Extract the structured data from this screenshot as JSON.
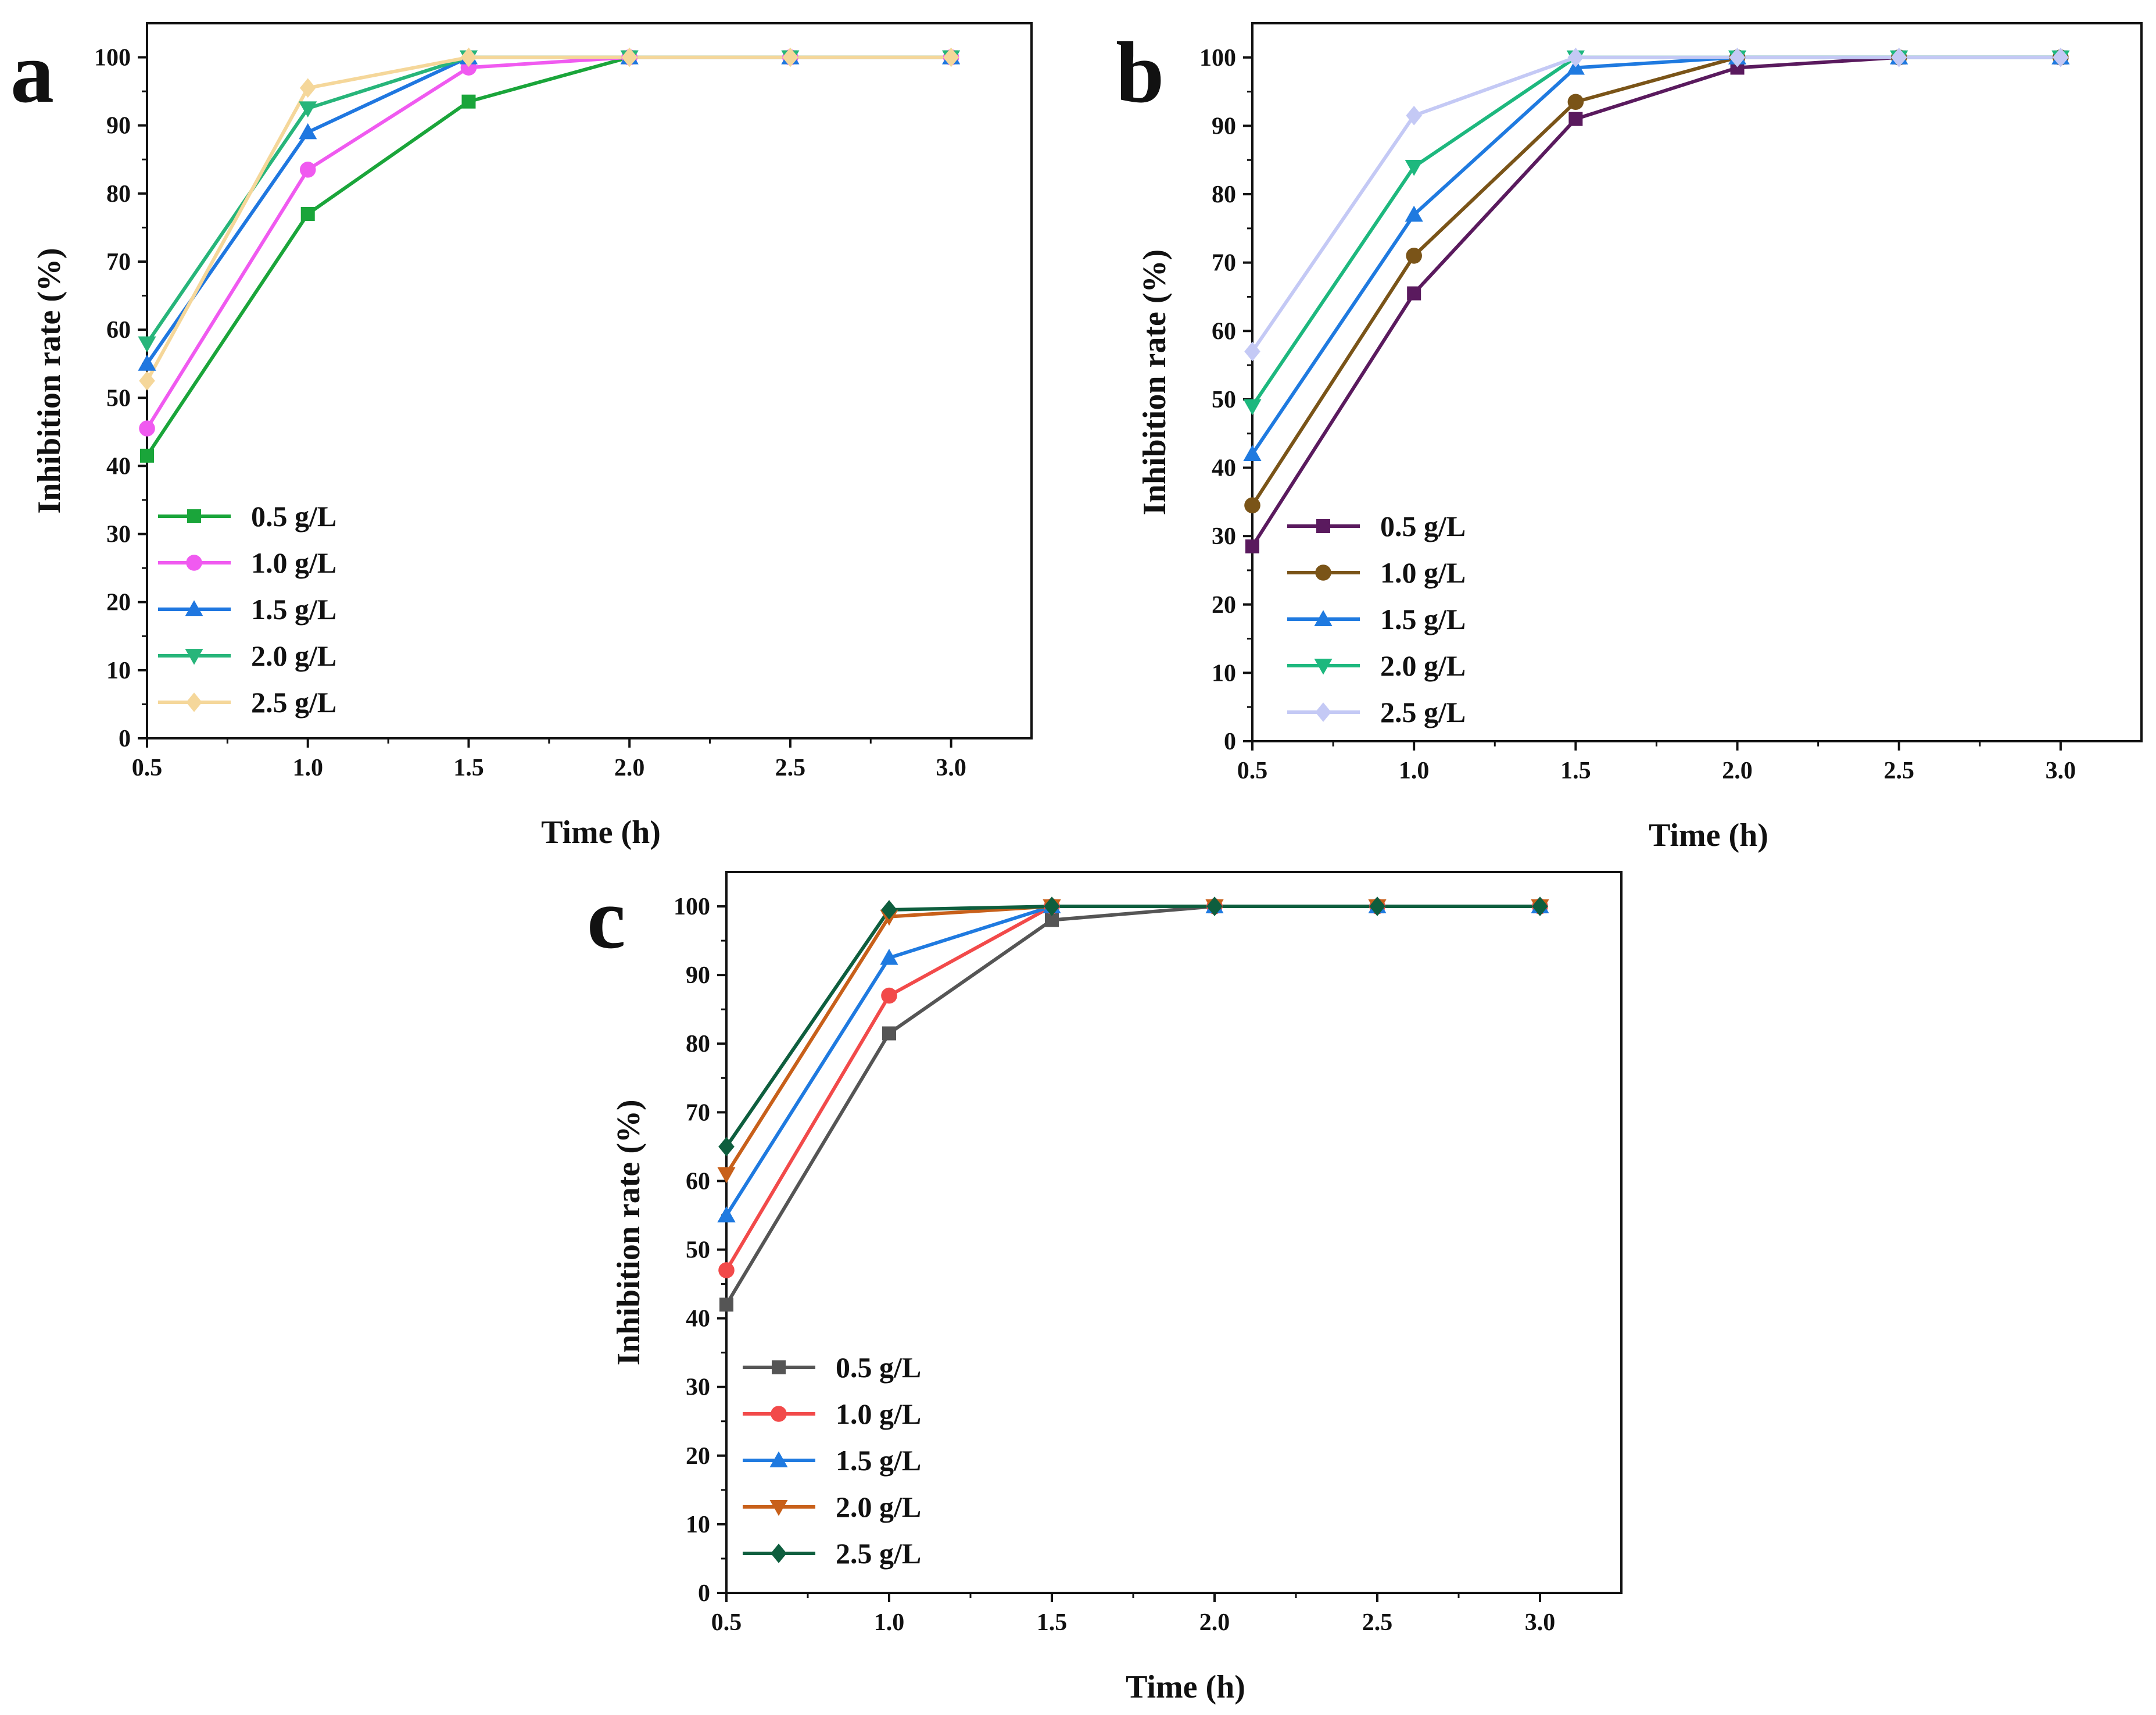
{
  "chart_data": [
    {
      "panel": "a",
      "type": "line",
      "xlabel": "Time (h)",
      "ylabel": "Inhibition rate (%)",
      "xlim": [
        0.5,
        3.25
      ],
      "ylim": [
        0,
        105
      ],
      "x_ticks": [
        "0.5",
        "1.0",
        "1.5",
        "2.0",
        "2.5",
        "3.0"
      ],
      "y_ticks": [
        "0",
        "10",
        "20",
        "30",
        "40",
        "50",
        "60",
        "70",
        "80",
        "90",
        "100"
      ],
      "x": [
        0.5,
        1.0,
        1.5,
        2.0,
        2.5,
        3.0
      ],
      "legend_position": "bottom-left",
      "series": [
        {
          "name": "0.5 g/L",
          "color": "#1aa53a",
          "marker": "square",
          "values": [
            41.5,
            77,
            93.5,
            100,
            100,
            100
          ]
        },
        {
          "name": "1.0 g/L",
          "color": "#f05af0",
          "marker": "circle",
          "values": [
            45.5,
            83.5,
            98.5,
            100,
            100,
            100
          ]
        },
        {
          "name": "1.5 g/L",
          "color": "#1f77e0",
          "marker": "triangle-up",
          "values": [
            55,
            89,
            100,
            100,
            100,
            100
          ]
        },
        {
          "name": "2.0 g/L",
          "color": "#27b57a",
          "marker": "triangle-down",
          "values": [
            58,
            92.5,
            100,
            100,
            100,
            100
          ]
        },
        {
          "name": "2.5 g/L",
          "color": "#f5d79a",
          "marker": "diamond",
          "values": [
            52.5,
            95.5,
            100,
            100,
            100,
            100
          ]
        }
      ]
    },
    {
      "panel": "b",
      "type": "line",
      "xlabel": "Time (h)",
      "ylabel": "Inhibition rate (%)",
      "xlim": [
        0.5,
        3.25
      ],
      "ylim": [
        0,
        105
      ],
      "x_ticks": [
        "0.5",
        "1.0",
        "1.5",
        "2.0",
        "2.5",
        "3.0"
      ],
      "y_ticks": [
        "0",
        "10",
        "20",
        "30",
        "40",
        "50",
        "60",
        "70",
        "80",
        "90",
        "100"
      ],
      "x": [
        0.5,
        1.0,
        1.5,
        2.0,
        2.5,
        3.0
      ],
      "legend_position": "bottom-left",
      "series": [
        {
          "name": "0.5 g/L",
          "color": "#5a1a5e",
          "marker": "square",
          "values": [
            28.5,
            65.5,
            91,
            98.5,
            100,
            100
          ]
        },
        {
          "name": "1.0 g/L",
          "color": "#7a5418",
          "marker": "circle",
          "values": [
            34.5,
            71,
            93.5,
            100,
            100,
            100
          ]
        },
        {
          "name": "1.5 g/L",
          "color": "#1f7ae0",
          "marker": "triangle-up",
          "values": [
            42,
            77,
            98.5,
            100,
            100,
            100
          ]
        },
        {
          "name": "2.0 g/L",
          "color": "#1db87e",
          "marker": "triangle-down",
          "values": [
            49,
            84,
            100,
            100,
            100,
            100
          ]
        },
        {
          "name": "2.5 g/L",
          "color": "#c4c9f5",
          "marker": "diamond",
          "values": [
            57,
            91.5,
            100,
            100,
            100,
            100
          ]
        }
      ]
    },
    {
      "panel": "c",
      "type": "line",
      "xlabel": "Time (h)",
      "ylabel": "Inhibition rate (%)",
      "xlim": [
        0.5,
        3.25
      ],
      "ylim": [
        0,
        105
      ],
      "x_ticks": [
        "0.5",
        "1.0",
        "1.5",
        "2.0",
        "2.5",
        "3.0"
      ],
      "y_ticks": [
        "0",
        "10",
        "20",
        "30",
        "40",
        "50",
        "60",
        "70",
        "80",
        "90",
        "100"
      ],
      "x": [
        0.5,
        1.0,
        1.5,
        2.0,
        2.5,
        3.0
      ],
      "legend_position": "bottom-left",
      "series": [
        {
          "name": "0.5 g/L",
          "color": "#555555",
          "marker": "square",
          "values": [
            42,
            81.5,
            98,
            100,
            100,
            100
          ]
        },
        {
          "name": "1.0 g/L",
          "color": "#f24a4a",
          "marker": "circle",
          "values": [
            47,
            87,
            100,
            100,
            100,
            100
          ]
        },
        {
          "name": "1.5 g/L",
          "color": "#1f7ae0",
          "marker": "triangle-up",
          "values": [
            55,
            92.5,
            100,
            100,
            100,
            100
          ]
        },
        {
          "name": "2.0 g/L",
          "color": "#c8601a",
          "marker": "triangle-down",
          "values": [
            61,
            98.5,
            100,
            100,
            100,
            100
          ]
        },
        {
          "name": "2.5 g/L",
          "color": "#0e5e3e",
          "marker": "diamond",
          "values": [
            65,
            99.5,
            100,
            100,
            100,
            100
          ]
        }
      ]
    }
  ]
}
